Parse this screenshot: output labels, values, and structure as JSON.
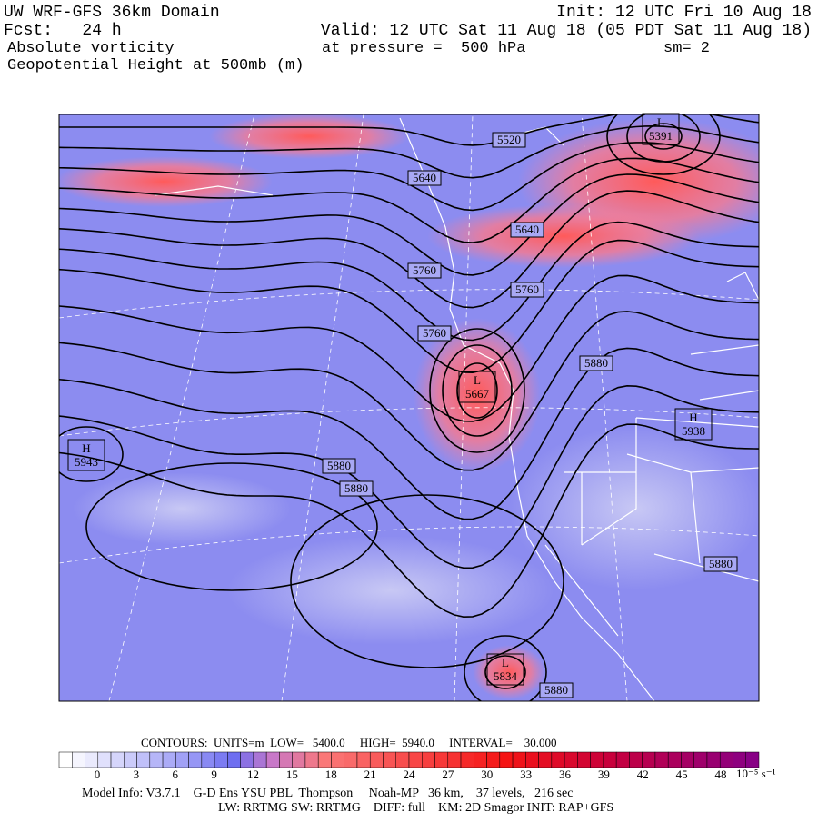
{
  "header": {
    "title": "UW WRF-GFS 36km Domain",
    "init": "Init: 12 UTC Fri 10 Aug 18",
    "forecast": "Fcst:   24 h",
    "valid": "Valid: 12 UTC Sat 11 Aug 18 (05 PDT Sat 11 Aug 18)",
    "field": "Absolute vorticity",
    "pressure": "at pressure =  500 hPa",
    "smoothing": "sm= 2",
    "overlay": "Geopotential Height at 500mb (m)"
  },
  "map": {
    "contour_labels": [
      5520,
      5640,
      5640,
      5760,
      5760,
      5760,
      5880,
      5880,
      5880,
      5880,
      5880
    ],
    "centers": [
      {
        "type": "L",
        "value": 5391
      },
      {
        "type": "L",
        "value": 5667
      },
      {
        "type": "H",
        "value": 5938
      },
      {
        "type": "H",
        "value": 5943
      },
      {
        "type": "L",
        "value": 5834
      }
    ]
  },
  "footer": {
    "contours": "CONTOURS:  UNITS=m  LOW=   5400.0     HIGH=  5940.0     INTERVAL=    30.000",
    "colorbar_ticks": [
      0,
      3,
      6,
      9,
      12,
      15,
      18,
      21,
      24,
      27,
      30,
      33,
      36,
      39,
      42,
      45,
      48
    ],
    "colorbar_unit": "10⁻⁵ s⁻¹",
    "model_info": "Model Info: V3.7.1    G-D Ens YSU PBL  Thompson     Noah-MP   36 km,    37 levels,   216 sec",
    "physics": "LW: RRTMG SW: RRTMG    DIFF: full    KM: 2D Smagor INIT: RAP+GFS"
  }
}
